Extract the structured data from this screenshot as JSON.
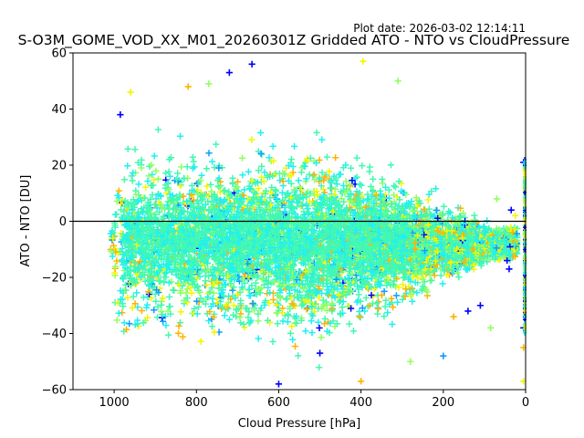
{
  "chart_data": {
    "type": "scatter",
    "plot_date_text": "Plot date: 2026-03-02 12:14:11",
    "title": "S-O3M_GOME_VOD_XX_M01_20260301Z Gridded ATO - NTO vs CloudPressure",
    "xlabel": "Cloud Pressure [hPa]",
    "ylabel": "ATO - NTO [DU]",
    "xlim": [
      1100,
      0
    ],
    "ylim": [
      -60,
      60
    ],
    "xaxis_inverted": true,
    "xticks": [
      1000,
      800,
      600,
      400,
      200,
      0
    ],
    "yticks": [
      60,
      40,
      20,
      0,
      -20,
      -40,
      -60
    ],
    "reference_line_y": 0,
    "marker": "+",
    "series_colors": [
      "#0000ff",
      "#0080ff",
      "#00d4ff",
      "#49ffad",
      "#6dff8a",
      "#b6ff41",
      "#ffd700",
      "#ffa500"
    ],
    "colors": {
      "core": "#44f8b0",
      "cyan": "#22f0f0",
      "blue": "#0000ff",
      "lightblue": "#0f9cff",
      "yellow": "#f5f500",
      "orange": "#ffb300",
      "lime": "#90ff60"
    },
    "sample_points": [
      {
        "x": 985,
        "y": 38,
        "c": "blue"
      },
      {
        "x": 720,
        "y": 53,
        "c": "blue"
      },
      {
        "x": 665,
        "y": 56,
        "c": "blue"
      },
      {
        "x": 395,
        "y": 57,
        "c": "yellow"
      },
      {
        "x": 310,
        "y": 50,
        "c": "lime"
      },
      {
        "x": 960,
        "y": 46,
        "c": "yellow"
      },
      {
        "x": 820,
        "y": 48,
        "c": "orange"
      },
      {
        "x": 770,
        "y": 49,
        "c": "lime"
      },
      {
        "x": 600,
        "y": -58,
        "c": "blue"
      },
      {
        "x": 500,
        "y": -47,
        "c": "blue"
      },
      {
        "x": 400,
        "y": -57,
        "c": "orange"
      },
      {
        "x": 280,
        "y": -50,
        "c": "lime"
      },
      {
        "x": 200,
        "y": -48,
        "c": "lightblue"
      },
      {
        "x": 175,
        "y": -34,
        "c": "orange"
      },
      {
        "x": 140,
        "y": -32,
        "c": "blue"
      },
      {
        "x": 110,
        "y": -30,
        "c": "blue"
      },
      {
        "x": 85,
        "y": -38,
        "c": "lime"
      },
      {
        "x": 45,
        "y": -14,
        "c": "blue"
      },
      {
        "x": 40,
        "y": -17,
        "c": "blue"
      },
      {
        "x": 35,
        "y": 4,
        "c": "blue"
      },
      {
        "x": 70,
        "y": 8,
        "c": "lime"
      },
      {
        "x": 25,
        "y": 2,
        "c": "yellow"
      },
      {
        "x": 5,
        "y": 21,
        "c": "blue"
      },
      {
        "x": 5,
        "y": -38,
        "c": "blue"
      },
      {
        "x": 5,
        "y": -57,
        "c": "yellow"
      },
      {
        "x": 5,
        "y": -45,
        "c": "orange"
      }
    ]
  }
}
